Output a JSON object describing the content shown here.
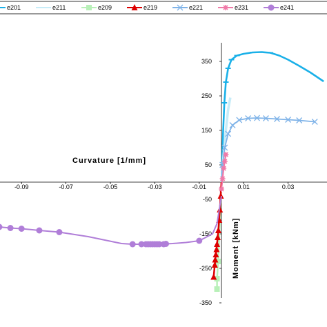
{
  "chart_data": {
    "type": "line",
    "xlabel": "Curvature [1/mm]",
    "ylabel": "Moment [kNm]",
    "xlim": [
      -0.1,
      0.046
    ],
    "ylim": [
      -370,
      400
    ],
    "x_ticks": [
      -0.09,
      -0.07,
      -0.05,
      -0.03,
      -0.01,
      0.01,
      0.03
    ],
    "x_tick_labels": [
      "-0.09",
      "-0.07",
      "-0.05",
      "-0.03",
      "-0.01",
      "0.01",
      "0.03"
    ],
    "y_ticks": [
      350,
      250,
      150,
      50,
      -50,
      -150,
      -250,
      -350
    ],
    "y_tick_labels": [
      "350",
      "250",
      "150",
      "50",
      "-50",
      "-150",
      "-250",
      "-350"
    ],
    "legend_position": "top",
    "series": [
      {
        "name": "e201",
        "color": "#1ab0e8",
        "marker": "dash",
        "points": [
          [
            0,
            0
          ],
          [
            0.0003,
            60
          ],
          [
            0.0007,
            140
          ],
          [
            0.0013,
            230
          ],
          [
            0.002,
            290
          ],
          [
            0.003,
            330
          ],
          [
            0.0045,
            355
          ],
          [
            0.007,
            367
          ],
          [
            0.01,
            372
          ],
          [
            0.014,
            376
          ],
          [
            0.018,
            377
          ],
          [
            0.022,
            375
          ],
          [
            0.026,
            367
          ],
          [
            0.03,
            355
          ],
          [
            0.035,
            337
          ],
          [
            0.04,
            318
          ],
          [
            0.046,
            292
          ]
        ],
        "marker_points": [
          [
            0.0013,
            230
          ],
          [
            0.002,
            290
          ],
          [
            0.003,
            330
          ],
          [
            0.0045,
            355
          ],
          [
            0.007,
            367
          ],
          [
            0.014,
            376
          ],
          [
            0.022,
            375
          ]
        ]
      },
      {
        "name": "e211",
        "color": "#c7ecf8",
        "marker": "none",
        "points": [
          [
            0,
            0
          ],
          [
            0.001,
            80
          ],
          [
            0.002,
            150
          ],
          [
            0.003,
            210
          ],
          [
            0.004,
            245
          ]
        ],
        "marker_points": []
      },
      {
        "name": "e209",
        "color": "#b8f0b8",
        "marker": "square",
        "points": [
          [
            0,
            0
          ],
          [
            -0.0005,
            -80
          ],
          [
            -0.001,
            -160
          ],
          [
            -0.0015,
            -230
          ],
          [
            -0.002,
            -280
          ],
          [
            -0.002,
            -310
          ]
        ],
        "marker_points": [
          [
            -0.0015,
            -230
          ],
          [
            -0.002,
            -280
          ],
          [
            -0.002,
            -310
          ]
        ]
      },
      {
        "name": "e219",
        "color": "#dd0000",
        "marker": "triangle",
        "points": [
          [
            0,
            0
          ],
          [
            -0.0007,
            -80
          ],
          [
            -0.0014,
            -140
          ],
          [
            -0.002,
            -180
          ],
          [
            -0.0025,
            -210
          ],
          [
            -0.003,
            -240
          ],
          [
            -0.0035,
            -275
          ]
        ],
        "marker_points": [
          [
            -0.0003,
            -40
          ],
          [
            -0.0007,
            -80
          ],
          [
            -0.001,
            -110
          ],
          [
            -0.0014,
            -140
          ],
          [
            -0.0017,
            -160
          ],
          [
            -0.002,
            -180
          ],
          [
            -0.0022,
            -195
          ],
          [
            -0.0025,
            -210
          ],
          [
            -0.0028,
            -225
          ],
          [
            -0.003,
            -240
          ],
          [
            -0.0035,
            -275
          ]
        ]
      },
      {
        "name": "e221",
        "color": "#7fb3e8",
        "marker": "x",
        "points": [
          [
            0,
            0
          ],
          [
            0.0005,
            50
          ],
          [
            0.0015,
            100
          ],
          [
            0.003,
            140
          ],
          [
            0.005,
            165
          ],
          [
            0.008,
            180
          ],
          [
            0.012,
            185
          ],
          [
            0.016,
            186
          ],
          [
            0.02,
            185
          ],
          [
            0.025,
            183
          ],
          [
            0.03,
            181
          ],
          [
            0.035,
            179
          ],
          [
            0.042,
            175
          ]
        ],
        "marker_points": [
          [
            0.0005,
            50
          ],
          [
            0.0015,
            100
          ],
          [
            0.003,
            140
          ],
          [
            0.005,
            165
          ],
          [
            0.008,
            180
          ],
          [
            0.012,
            185
          ],
          [
            0.016,
            186
          ],
          [
            0.02,
            185
          ],
          [
            0.025,
            183
          ],
          [
            0.03,
            181
          ],
          [
            0.035,
            179
          ],
          [
            0.042,
            175
          ]
        ]
      },
      {
        "name": "e231",
        "color": "#f07aa8",
        "marker": "star",
        "points": [
          [
            0,
            -20
          ],
          [
            0.0005,
            10
          ],
          [
            0.001,
            40
          ],
          [
            0.0015,
            60
          ],
          [
            0.002,
            80
          ]
        ],
        "marker_points": [
          [
            0,
            -20
          ],
          [
            0.0005,
            10
          ],
          [
            0.001,
            40
          ],
          [
            0.0015,
            60
          ],
          [
            0.002,
            80
          ]
        ]
      },
      {
        "name": "e241",
        "color": "#b07ed8",
        "marker": "circle",
        "points": [
          [
            -0.1,
            -130
          ],
          [
            -0.095,
            -133
          ],
          [
            -0.09,
            -135
          ],
          [
            -0.082,
            -140
          ],
          [
            -0.073,
            -145
          ],
          [
            -0.06,
            -158
          ],
          [
            -0.045,
            -178
          ],
          [
            -0.04,
            -180
          ],
          [
            -0.036,
            -180
          ],
          [
            -0.034,
            -180
          ],
          [
            -0.033,
            -180
          ],
          [
            -0.032,
            -180
          ],
          [
            -0.031,
            -180
          ],
          [
            -0.03,
            -180
          ],
          [
            -0.029,
            -180
          ],
          [
            -0.028,
            -180
          ],
          [
            -0.026,
            -180
          ],
          [
            -0.025,
            -179
          ],
          [
            -0.022,
            -178
          ],
          [
            -0.016,
            -175
          ],
          [
            -0.01,
            -170
          ],
          [
            -0.004,
            -150
          ],
          [
            -0.002,
            -120
          ],
          [
            -0.001,
            -80
          ],
          [
            0,
            -40
          ]
        ],
        "marker_points": [
          [
            -0.1,
            -130
          ],
          [
            -0.095,
            -133
          ],
          [
            -0.09,
            -135
          ],
          [
            -0.082,
            -140
          ],
          [
            -0.073,
            -145
          ],
          [
            -0.04,
            -180
          ],
          [
            -0.036,
            -180
          ],
          [
            -0.034,
            -180
          ],
          [
            -0.033,
            -180
          ],
          [
            -0.032,
            -180
          ],
          [
            -0.031,
            -180
          ],
          [
            -0.03,
            -180
          ],
          [
            -0.029,
            -180
          ],
          [
            -0.028,
            -180
          ],
          [
            -0.026,
            -180
          ],
          [
            -0.025,
            -179
          ],
          [
            -0.01,
            -170
          ]
        ]
      }
    ]
  }
}
